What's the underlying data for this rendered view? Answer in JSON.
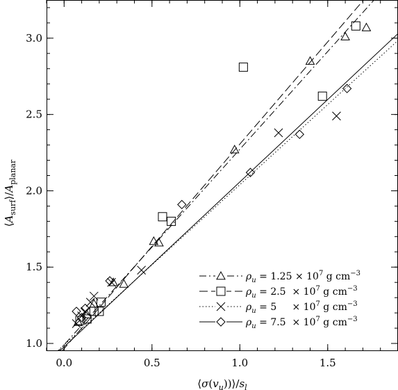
{
  "chart_data": {
    "type": "scatter",
    "xlabel": "⟨σ(v_u)⟩/s_l",
    "ylabel": "⟨A_surf⟩/A_planar",
    "xlim": [
      -0.1,
      1.9
    ],
    "ylim": [
      0.95,
      3.25
    ],
    "xticks": [
      {
        "value": 0.0,
        "label": "0.0"
      },
      {
        "value": 0.5,
        "label": "0.5"
      },
      {
        "value": 1.0,
        "label": "1.0"
      },
      {
        "value": 1.5,
        "label": "1.5"
      }
    ],
    "yticks": [
      {
        "value": 1.0,
        "label": "1.0"
      },
      {
        "value": 1.5,
        "label": "1.5"
      },
      {
        "value": 2.0,
        "label": "2.0"
      },
      {
        "value": 2.5,
        "label": "2.5"
      },
      {
        "value": 3.0,
        "label": "3.0"
      }
    ],
    "legend": {
      "position": "bottom-right"
    },
    "series": [
      {
        "name": "ρ_u = 1.25 × 10^7 g cm^-3",
        "legend_parts": {
          "rho": "ρ",
          "sub": "u",
          "eq": " = 1.25 × 10",
          "exp": "7",
          "unit": " g cm",
          "unit_exp": "−3"
        },
        "marker": "triangle",
        "linestyle": "dash-dot",
        "fit": {
          "x": [
            -0.1,
            1.9
          ],
          "y": [
            0.863,
            3.425
          ]
        },
        "points": [
          [
            0.08,
            1.14
          ],
          [
            0.13,
            1.19
          ],
          [
            0.17,
            1.26
          ],
          [
            0.28,
            1.4
          ],
          [
            0.34,
            1.39
          ],
          [
            0.51,
            1.67
          ],
          [
            0.54,
            1.66
          ],
          [
            0.97,
            2.27
          ],
          [
            1.4,
            2.85
          ],
          [
            1.6,
            3.01
          ],
          [
            1.72,
            3.07
          ]
        ]
      },
      {
        "name": "ρ_u = 2.5 × 10^7 g cm^-3",
        "legend_parts": {
          "rho": "ρ",
          "sub": "u",
          "eq": " = 2.5  × 10",
          "exp": "7",
          "unit": " g cm",
          "unit_exp": "−3"
        },
        "marker": "square",
        "linestyle": "dashed",
        "fit": {
          "x": [
            -0.1,
            1.9
          ],
          "y": [
            0.832,
            3.512
          ]
        },
        "points": [
          [
            0.09,
            1.15
          ],
          [
            0.13,
            1.16
          ],
          [
            0.17,
            1.21
          ],
          [
            0.2,
            1.21
          ],
          [
            0.21,
            1.27
          ],
          [
            0.56,
            1.83
          ],
          [
            0.61,
            1.8
          ],
          [
            1.02,
            2.81
          ],
          [
            1.47,
            2.62
          ],
          [
            1.66,
            3.08
          ]
        ]
      },
      {
        "name": "ρ_u = 5 × 10^7 g cm^-3",
        "legend_parts": {
          "rho": "ρ",
          "sub": "u",
          "eq": " = 5     × 10",
          "exp": "7",
          "unit": " g cm",
          "unit_exp": "−3"
        },
        "marker": "x",
        "linestyle": "dotted",
        "fit": {
          "x": [
            -0.1,
            1.9
          ],
          "y": [
            0.885,
            2.985
          ]
        },
        "points": [
          [
            0.07,
            1.13
          ],
          [
            0.1,
            1.18
          ],
          [
            0.12,
            1.21
          ],
          [
            0.15,
            1.27
          ],
          [
            0.17,
            1.31
          ],
          [
            0.27,
            1.4
          ],
          [
            0.44,
            1.48
          ],
          [
            1.22,
            2.38
          ],
          [
            1.55,
            2.49
          ]
        ]
      },
      {
        "name": "ρ_u = 7.5 × 10^7 g cm^-3",
        "legend_parts": {
          "rho": "ρ",
          "sub": "u",
          "eq": " = 7.5  × 10",
          "exp": "7",
          "unit": " g cm",
          "unit_exp": "−3"
        },
        "marker": "diamond",
        "linestyle": "solid",
        "fit": {
          "x": [
            -0.1,
            1.9
          ],
          "y": [
            0.87,
            3.03
          ]
        },
        "points": [
          [
            0.07,
            1.21
          ],
          [
            0.1,
            1.17
          ],
          [
            0.12,
            1.23
          ],
          [
            0.26,
            1.41
          ],
          [
            0.67,
            1.91
          ],
          [
            1.06,
            2.12
          ],
          [
            1.34,
            2.37
          ],
          [
            1.61,
            2.67
          ]
        ]
      }
    ]
  }
}
